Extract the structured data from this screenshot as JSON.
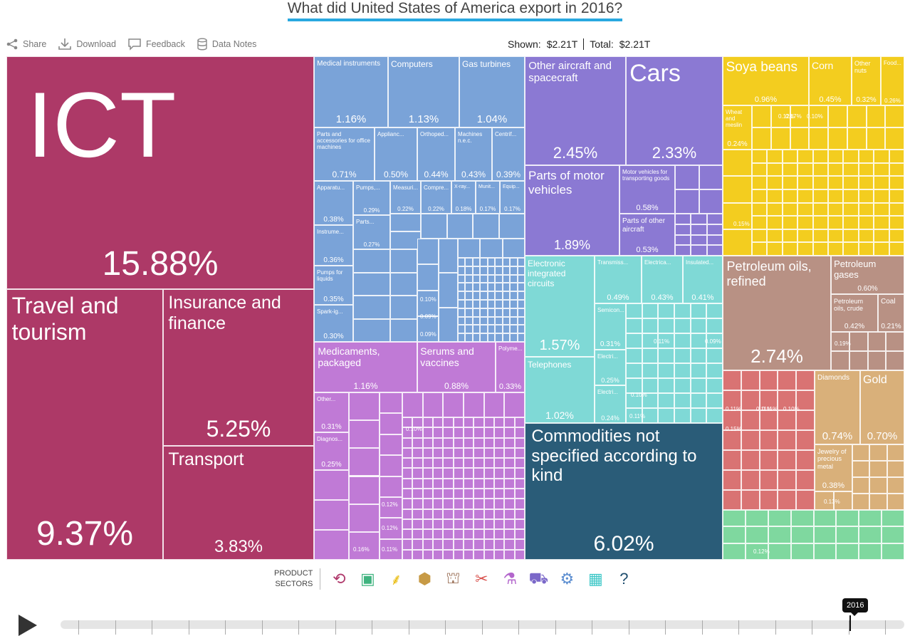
{
  "title": "What did United States of America export in 2016?",
  "toolbar": {
    "share": "Share",
    "download": "Download",
    "feedback": "Feedback",
    "data_notes": "Data Notes"
  },
  "totals": {
    "shown_label": "Shown:",
    "shown_value": "$2.21T",
    "total_label": "Total:",
    "total_value": "$2.21T"
  },
  "sectors": {
    "label_line1": "PRODUCT",
    "label_line2": "SECTORS",
    "icons": [
      {
        "name": "services-icon",
        "glyph": "⟲",
        "color": "#b03a6c"
      },
      {
        "name": "textiles-icon",
        "glyph": "▣",
        "color": "#3fb37f"
      },
      {
        "name": "agriculture-icon",
        "glyph": "⸙",
        "color": "#e8b800"
      },
      {
        "name": "stone-icon",
        "glyph": "⬢",
        "color": "#c79a45"
      },
      {
        "name": "minerals-icon",
        "glyph": "⛫",
        "color": "#a07860"
      },
      {
        "name": "metals-icon",
        "glyph": "✂",
        "color": "#d9534f"
      },
      {
        "name": "chemicals-icon",
        "glyph": "⚗",
        "color": "#b366cc"
      },
      {
        "name": "vehicles-icon",
        "glyph": "⛟",
        "color": "#7b68c9"
      },
      {
        "name": "machinery-icon",
        "glyph": "⚙",
        "color": "#5b8dd0"
      },
      {
        "name": "electronics-icon",
        "glyph": "▦",
        "color": "#3cc7c7"
      },
      {
        "name": "other-icon",
        "glyph": "?",
        "color": "#1f4e6e"
      }
    ]
  },
  "timeline": {
    "year": "2016"
  },
  "colors": {
    "services": "#ad3967",
    "machinery": "#7aa3d8",
    "chemicals": "#c07ad6",
    "vehicles": "#8b79d3",
    "electronics": "#7fd9d6",
    "other": "#2a5c78",
    "agriculture": "#f3cd1f",
    "minerals": "#b89184",
    "stone": "#d9b07a",
    "metals": "#d97373",
    "textiles": "#7fd89f"
  },
  "chart_data": {
    "type": "treemap",
    "unit": "% of total exports",
    "items": [
      {
        "name": "ICT",
        "value": 15.88,
        "label": "15.88%",
        "sector": "services"
      },
      {
        "name": "Travel and tourism",
        "value": 9.37,
        "label": "9.37%",
        "sector": "services"
      },
      {
        "name": "Insurance and finance",
        "value": 5.25,
        "label": "5.25%",
        "sector": "services"
      },
      {
        "name": "Transport",
        "value": 3.83,
        "label": "3.83%",
        "sector": "services"
      },
      {
        "name": "Medical instruments",
        "value": 1.16,
        "label": "1.16%",
        "sector": "machinery"
      },
      {
        "name": "Computers",
        "value": 1.13,
        "label": "1.13%",
        "sector": "machinery"
      },
      {
        "name": "Gas turbines",
        "value": 1.04,
        "label": "1.04%",
        "sector": "machinery"
      },
      {
        "name": "Parts and accessories for office machines",
        "value": 0.71,
        "label": "0.71%",
        "sector": "machinery"
      },
      {
        "name": "Applianc...",
        "value": 0.5,
        "label": "0.50%",
        "sector": "machinery"
      },
      {
        "name": "Orthoped...",
        "value": 0.44,
        "label": "0.44%",
        "sector": "machinery"
      },
      {
        "name": "Machines n.e.c.",
        "value": 0.43,
        "label": "0.43%",
        "sector": "machinery"
      },
      {
        "name": "Centrif...",
        "value": 0.39,
        "label": "0.39%",
        "sector": "machinery"
      },
      {
        "name": "Apparatu...",
        "value": 0.38,
        "label": "0.38%",
        "sector": "machinery"
      },
      {
        "name": "Pumps,...",
        "value": 0.29,
        "label": "0.29%",
        "sector": "machinery"
      },
      {
        "name": "Measuri...",
        "value": 0.22,
        "label": "0.22%",
        "sector": "machinery"
      },
      {
        "name": "Compre...",
        "value": 0.22,
        "label": "0.22%",
        "sector": "machinery"
      },
      {
        "name": "X-ray...",
        "value": 0.18,
        "label": "0.18%",
        "sector": "machinery"
      },
      {
        "name": "Munit...",
        "value": 0.17,
        "label": "0.17%",
        "sector": "machinery"
      },
      {
        "name": "Equip...",
        "value": 0.17,
        "label": "0.17%",
        "sector": "machinery"
      },
      {
        "name": "Instrume...",
        "value": 0.36,
        "label": "0.36%",
        "sector": "machinery"
      },
      {
        "name": "Parts...",
        "value": 0.27,
        "label": "0.27%",
        "sector": "machinery"
      },
      {
        "name": "Transmiss...",
        "value": 0.28,
        "label": "0.28%",
        "sector": "machinery"
      },
      {
        "name": "Pumps for liquids",
        "value": 0.35,
        "label": "0.35%",
        "sector": "machinery"
      },
      {
        "name": "Spark-ig...",
        "value": 0.3,
        "label": "0.30%",
        "sector": "machinery"
      },
      {
        "name": "Medicaments, packaged",
        "value": 1.16,
        "label": "1.16%",
        "sector": "chemicals"
      },
      {
        "name": "Serums and vaccines",
        "value": 0.88,
        "label": "0.88%",
        "sector": "chemicals"
      },
      {
        "name": "Polyme...",
        "value": 0.33,
        "label": "0.33%",
        "sector": "chemicals"
      },
      {
        "name": "Other...",
        "value": 0.31,
        "label": "0.31%",
        "sector": "chemicals"
      },
      {
        "name": "Diagnos...",
        "value": 0.25,
        "label": "0.25%",
        "sector": "chemicals"
      },
      {
        "name": "Other aircraft and spacecraft",
        "value": 2.45,
        "label": "2.45%",
        "sector": "vehicles"
      },
      {
        "name": "Cars",
        "value": 2.33,
        "label": "2.33%",
        "sector": "vehicles"
      },
      {
        "name": "Parts of motor vehicles",
        "value": 1.89,
        "label": "1.89%",
        "sector": "vehicles"
      },
      {
        "name": "Motor vehicles for transporting goods",
        "value": 0.58,
        "label": "0.58%",
        "sector": "vehicles"
      },
      {
        "name": "Parts of other aircraft",
        "value": 0.53,
        "label": "0.53%",
        "sector": "vehicles"
      },
      {
        "name": "Electronic integrated circuits",
        "value": 1.57,
        "label": "1.57%",
        "sector": "electronics"
      },
      {
        "name": "Telephones",
        "value": 1.02,
        "label": "1.02%",
        "sector": "electronics"
      },
      {
        "name": "Transmiss...",
        "value": 0.49,
        "label": "0.49%",
        "sector": "electronics"
      },
      {
        "name": "Electrica...",
        "value": 0.43,
        "label": "0.43%",
        "sector": "electronics"
      },
      {
        "name": "Insulated...",
        "value": 0.41,
        "label": "0.41%",
        "sector": "electronics"
      },
      {
        "name": "Semicon...",
        "value": 0.31,
        "label": "0.31%",
        "sector": "electronics"
      },
      {
        "name": "Electri...",
        "value": 0.25,
        "label": "0.25%",
        "sector": "electronics"
      },
      {
        "name": "Electri...",
        "value": 0.24,
        "label": "0.24%",
        "sector": "electronics"
      },
      {
        "name": "Commodities not specified according to kind",
        "value": 6.02,
        "label": "6.02%",
        "sector": "other"
      },
      {
        "name": "Soya beans",
        "value": 0.96,
        "label": "0.96%",
        "sector": "agriculture"
      },
      {
        "name": "Corn",
        "value": 0.45,
        "label": "0.45%",
        "sector": "agriculture"
      },
      {
        "name": "Other nuts",
        "value": 0.32,
        "label": "0.32%",
        "sector": "agriculture"
      },
      {
        "name": "Food...",
        "value": 0.26,
        "label": "0.26%",
        "sector": "agriculture"
      },
      {
        "name": "Wheat and meslin",
        "value": 0.24,
        "label": "0.24%",
        "sector": "agriculture"
      },
      {
        "name": "Petroleum oils, refined",
        "value": 2.74,
        "label": "2.74%",
        "sector": "minerals"
      },
      {
        "name": "Petroleum gases",
        "value": 0.6,
        "label": "0.60%",
        "sector": "minerals"
      },
      {
        "name": "Petroleum oils, crude",
        "value": 0.42,
        "label": "0.42%",
        "sector": "minerals"
      },
      {
        "name": "Coal",
        "value": 0.21,
        "label": "0.21%",
        "sector": "minerals"
      },
      {
        "name": "Diamonds",
        "value": 0.74,
        "label": "0.74%",
        "sector": "stone"
      },
      {
        "name": "Gold",
        "value": 0.7,
        "label": "0.70%",
        "sector": "stone"
      },
      {
        "name": "Jewelry of precious metal",
        "value": 0.38,
        "label": "0.38%",
        "sector": "stone"
      }
    ],
    "small_labels": [
      "0.10%",
      "0.09%",
      "0.09%",
      "0.15%",
      "0.10%",
      "0.12%",
      "0.12%",
      "0.16%",
      "0.11%",
      "0.11%",
      "0.10%",
      "0.12%",
      "0.11%",
      "0.10%",
      "0.19%",
      "0.11%",
      "0.13%",
      "0.15%",
      "0.11%",
      "0.09%",
      "0.17%",
      "0.12%",
      "0.11%",
      "0.10%"
    ]
  }
}
